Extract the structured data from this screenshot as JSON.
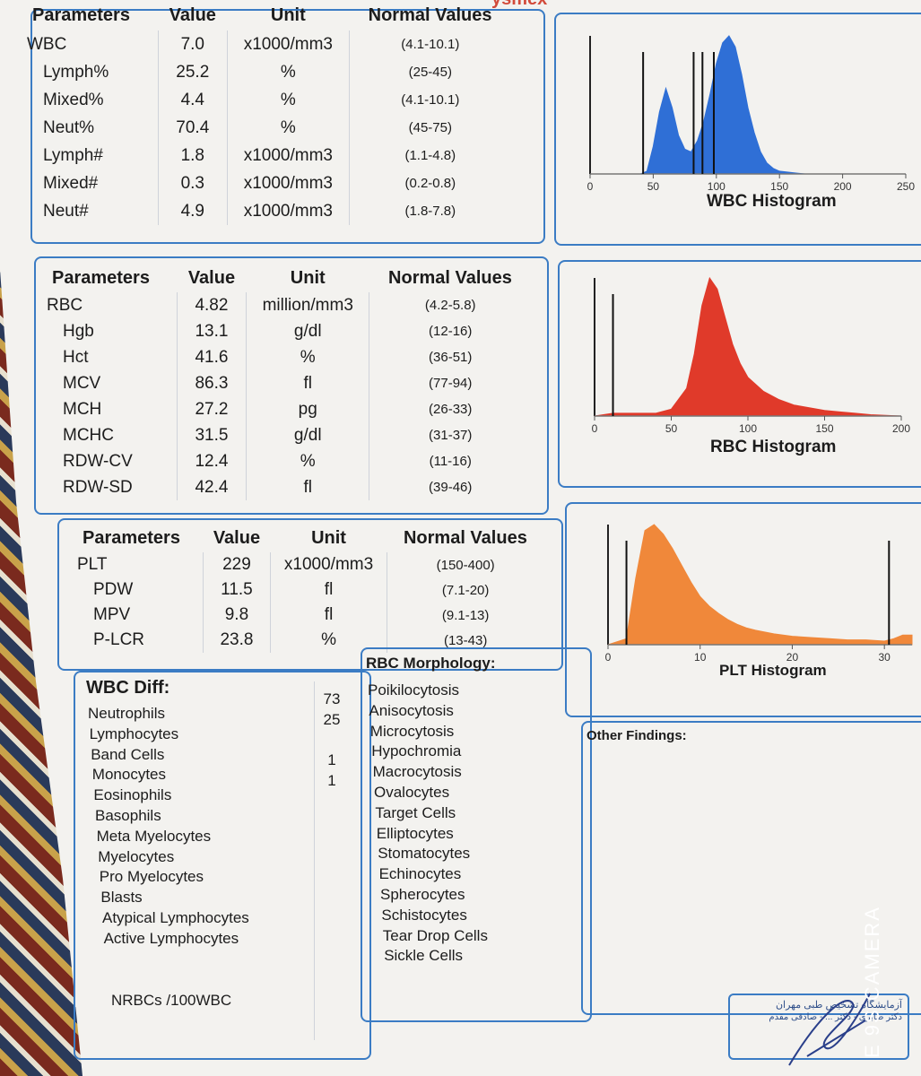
{
  "wbc_table": {
    "headers": [
      "Parameters",
      "Value",
      "Unit",
      "Normal Values"
    ],
    "rows": [
      {
        "param": "WBC",
        "value": "7.0",
        "unit": "x1000/mm3",
        "normal": "(4.1-10.1)"
      },
      {
        "param": "Lymph%",
        "value": "25.2",
        "unit": "%",
        "normal": "(25-45)"
      },
      {
        "param": "Mixed%",
        "value": "4.4",
        "unit": "%",
        "normal": "(4.1-10.1)"
      },
      {
        "param": "Neut%",
        "value": "70.4",
        "unit": "%",
        "normal": "(45-75)"
      },
      {
        "param": "Lymph#",
        "value": "1.8",
        "unit": "x1000/mm3",
        "normal": "(1.1-4.8)"
      },
      {
        "param": "Mixed#",
        "value": "0.3",
        "unit": "x1000/mm3",
        "normal": "(0.2-0.8)"
      },
      {
        "param": "Neut#",
        "value": "4.9",
        "unit": "x1000/mm3",
        "normal": "(1.8-7.8)"
      }
    ]
  },
  "rbc_table": {
    "headers": [
      "Parameters",
      "Value",
      "Unit",
      "Normal Values"
    ],
    "rows": [
      {
        "param": "RBC",
        "value": "4.82",
        "unit": "million/mm3",
        "normal": "(4.2-5.8)"
      },
      {
        "param": "Hgb",
        "value": "13.1",
        "unit": "g/dl",
        "normal": "(12-16)"
      },
      {
        "param": "Hct",
        "value": "41.6",
        "unit": "%",
        "normal": "(36-51)"
      },
      {
        "param": "MCV",
        "value": "86.3",
        "unit": "fl",
        "normal": "(77-94)"
      },
      {
        "param": "MCH",
        "value": "27.2",
        "unit": "pg",
        "normal": "(26-33)"
      },
      {
        "param": "MCHC",
        "value": "31.5",
        "unit": "g/dl",
        "normal": "(31-37)"
      },
      {
        "param": "RDW-CV",
        "value": "12.4",
        "unit": "%",
        "normal": "(11-16)"
      },
      {
        "param": "RDW-SD",
        "value": "42.4",
        "unit": "fl",
        "normal": "(39-46)"
      }
    ]
  },
  "plt_table": {
    "headers": [
      "Parameters",
      "Value",
      "Unit",
      "Normal Values"
    ],
    "rows": [
      {
        "param": "PLT",
        "value": "229",
        "unit": "x1000/mm3",
        "normal": "(150-400)"
      },
      {
        "param": "PDW",
        "value": "11.5",
        "unit": "fl",
        "normal": "(7.1-20)"
      },
      {
        "param": "MPV",
        "value": "9.8",
        "unit": "fl",
        "normal": "(9.1-13)"
      },
      {
        "param": "P-LCR",
        "value": "23.8",
        "unit": "%",
        "normal": "(13-43)"
      }
    ]
  },
  "wbc_diff": {
    "title": "WBC Diff:",
    "items": [
      {
        "name": "Neutrophils",
        "value": "73"
      },
      {
        "name": "Lymphocytes",
        "value": "25"
      },
      {
        "name": "Band Cells",
        "value": ""
      },
      {
        "name": "Monocytes",
        "value": "1"
      },
      {
        "name": "Eosinophils",
        "value": "1"
      },
      {
        "name": "Basophils",
        "value": ""
      },
      {
        "name": "Meta Myelocytes",
        "value": ""
      },
      {
        "name": "Myelocytes",
        "value": ""
      },
      {
        "name": "Pro Myelocytes",
        "value": ""
      },
      {
        "name": "Blasts",
        "value": ""
      },
      {
        "name": "Atypical Lymphocytes",
        "value": ""
      },
      {
        "name": "Active Lymphocytes",
        "value": ""
      }
    ],
    "nrbc_label": "NRBCs /100WBC"
  },
  "rbc_morphology": {
    "title": "RBC Morphology:",
    "items": [
      "Poikilocytosis",
      "Anisocytosis",
      "Microcytosis",
      "Hypochromia",
      "Macrocytosis",
      "Ovalocytes",
      "Target Cells",
      "Elliptocytes",
      "Stomatocytes",
      "Echinocytes",
      "Spherocytes",
      "Schistocytes",
      "Tear Drop Cells",
      "Sickle Cells"
    ]
  },
  "other_findings_label": "Other Findings:",
  "header_fragment": "ysmex",
  "stamp_text": [
    "آزمایشگاه تشخیص طبی مهران",
    "دکتر صابری - دکتر ... - صادقی مقدم"
  ],
  "camera_watermark": "E 9S CAMERA",
  "chart_data": [
    {
      "type": "area",
      "title": "WBC Histogram",
      "xlabel": "",
      "ylabel": "",
      "x_ticks": [
        "0",
        "50",
        "100",
        "150",
        "200",
        "250"
      ],
      "xlim": [
        0,
        250
      ],
      "color": "#2f6fd6",
      "marker_lines_x": [
        42,
        82,
        89,
        98
      ],
      "x": [
        0,
        10,
        20,
        30,
        40,
        45,
        50,
        55,
        60,
        65,
        70,
        75,
        80,
        85,
        90,
        95,
        100,
        105,
        110,
        115,
        120,
        125,
        130,
        135,
        140,
        145,
        150,
        160,
        170,
        180,
        190,
        200,
        250
      ],
      "y": [
        0,
        0,
        0,
        0,
        0,
        0.02,
        0.2,
        0.45,
        0.62,
        0.48,
        0.28,
        0.18,
        0.16,
        0.24,
        0.38,
        0.58,
        0.8,
        0.95,
        1.0,
        0.92,
        0.72,
        0.48,
        0.3,
        0.16,
        0.08,
        0.04,
        0.02,
        0.01,
        0,
        0,
        0,
        0,
        0
      ]
    },
    {
      "type": "area",
      "title": "RBC Histogram",
      "xlabel": "",
      "ylabel": "",
      "x_ticks": [
        "0",
        "50",
        "100",
        "150",
        "200"
      ],
      "xlim": [
        0,
        200
      ],
      "color": "#e03a2a",
      "marker_lines_x": [
        12
      ],
      "x": [
        0,
        12,
        20,
        30,
        40,
        50,
        60,
        65,
        70,
        75,
        80,
        85,
        90,
        95,
        100,
        110,
        120,
        130,
        140,
        150,
        160,
        170,
        180,
        200
      ],
      "y": [
        0,
        0.02,
        0.02,
        0.02,
        0.02,
        0.05,
        0.2,
        0.45,
        0.8,
        1.0,
        0.92,
        0.72,
        0.52,
        0.38,
        0.28,
        0.18,
        0.12,
        0.08,
        0.06,
        0.04,
        0.03,
        0.02,
        0.01,
        0
      ]
    },
    {
      "type": "area",
      "title": "PLT Histogram",
      "xlabel": "",
      "ylabel": "",
      "x_ticks": [
        "0",
        "10",
        "20",
        "30"
      ],
      "xlim": [
        0,
        33
      ],
      "color": "#f0883a",
      "marker_lines_x": [
        2,
        30.5
      ],
      "x": [
        0,
        2,
        3,
        4,
        5,
        6,
        7,
        8,
        9,
        10,
        11,
        12,
        13,
        14,
        15,
        16,
        18,
        20,
        22,
        24,
        26,
        28,
        30,
        31,
        32,
        33
      ],
      "y": [
        0,
        0.05,
        0.55,
        0.95,
        1.0,
        0.92,
        0.8,
        0.66,
        0.52,
        0.4,
        0.32,
        0.26,
        0.21,
        0.17,
        0.14,
        0.12,
        0.09,
        0.07,
        0.06,
        0.05,
        0.04,
        0.04,
        0.03,
        0.05,
        0.08,
        0.08
      ]
    }
  ]
}
